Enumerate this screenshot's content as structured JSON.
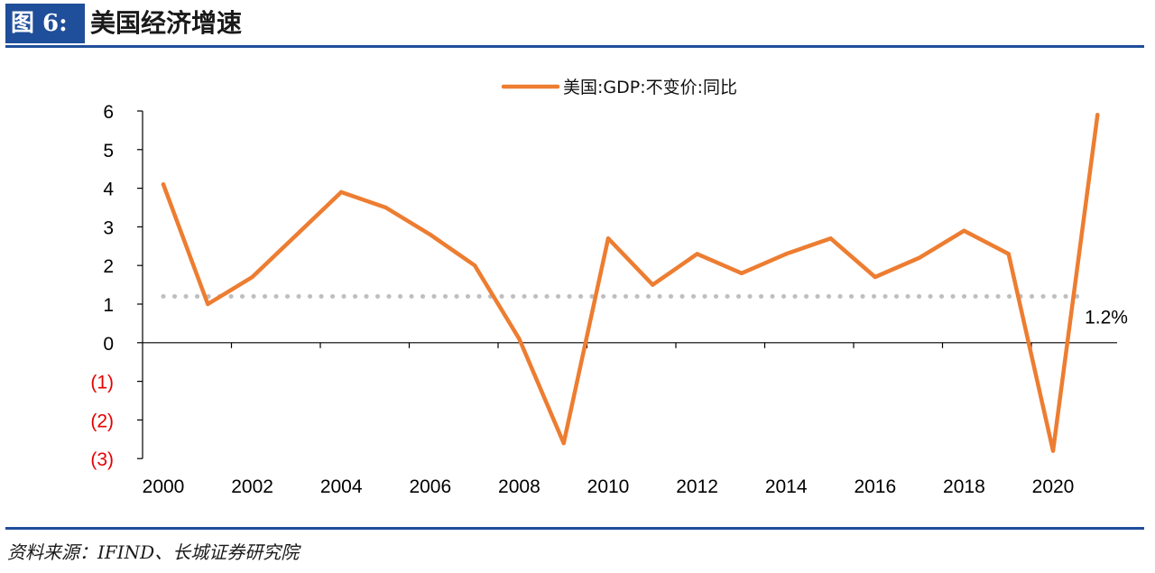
{
  "header": {
    "figure_label": "图 6:",
    "title": "美国经济增速"
  },
  "footer": {
    "source": "资料来源：IFIND、长城证券研究院"
  },
  "colors": {
    "accent": "#1f4e9a",
    "series": "#ed7d31",
    "reference": "#bfbfbf",
    "negative_tick": "#e60000",
    "axis": "#000000"
  },
  "chart_data": {
    "type": "line",
    "title": "",
    "xlabel": "",
    "ylabel": "",
    "x": [
      2000,
      2001,
      2002,
      2003,
      2004,
      2005,
      2006,
      2007,
      2008,
      2009,
      2010,
      2011,
      2012,
      2013,
      2014,
      2015,
      2016,
      2017,
      2018,
      2019,
      2020,
      2021
    ],
    "x_tick_labels": [
      "2000",
      "2002",
      "2004",
      "2006",
      "2008",
      "2010",
      "2012",
      "2014",
      "2016",
      "2018",
      "2020"
    ],
    "xlim": [
      2000,
      2021
    ],
    "ylim": [
      -3,
      6
    ],
    "y_ticks": [
      6,
      5,
      4,
      3,
      2,
      1,
      0,
      -1,
      -2,
      -3
    ],
    "y_tick_labels": [
      "6",
      "5",
      "4",
      "3",
      "2",
      "1",
      "0",
      "(1)",
      "(2)",
      "(3)"
    ],
    "series": [
      {
        "name": "美国:GDP:不变价:同比",
        "values": [
          4.1,
          1.0,
          1.7,
          2.8,
          3.9,
          3.5,
          2.8,
          2.0,
          0.1,
          -2.6,
          2.7,
          1.5,
          2.3,
          1.8,
          2.3,
          2.7,
          1.7,
          2.2,
          2.9,
          2.3,
          -2.8,
          5.9
        ]
      }
    ],
    "reference_line": {
      "value": 1.2,
      "label": "1.2%"
    },
    "legend": {
      "position": "top-center"
    },
    "grid": false
  }
}
